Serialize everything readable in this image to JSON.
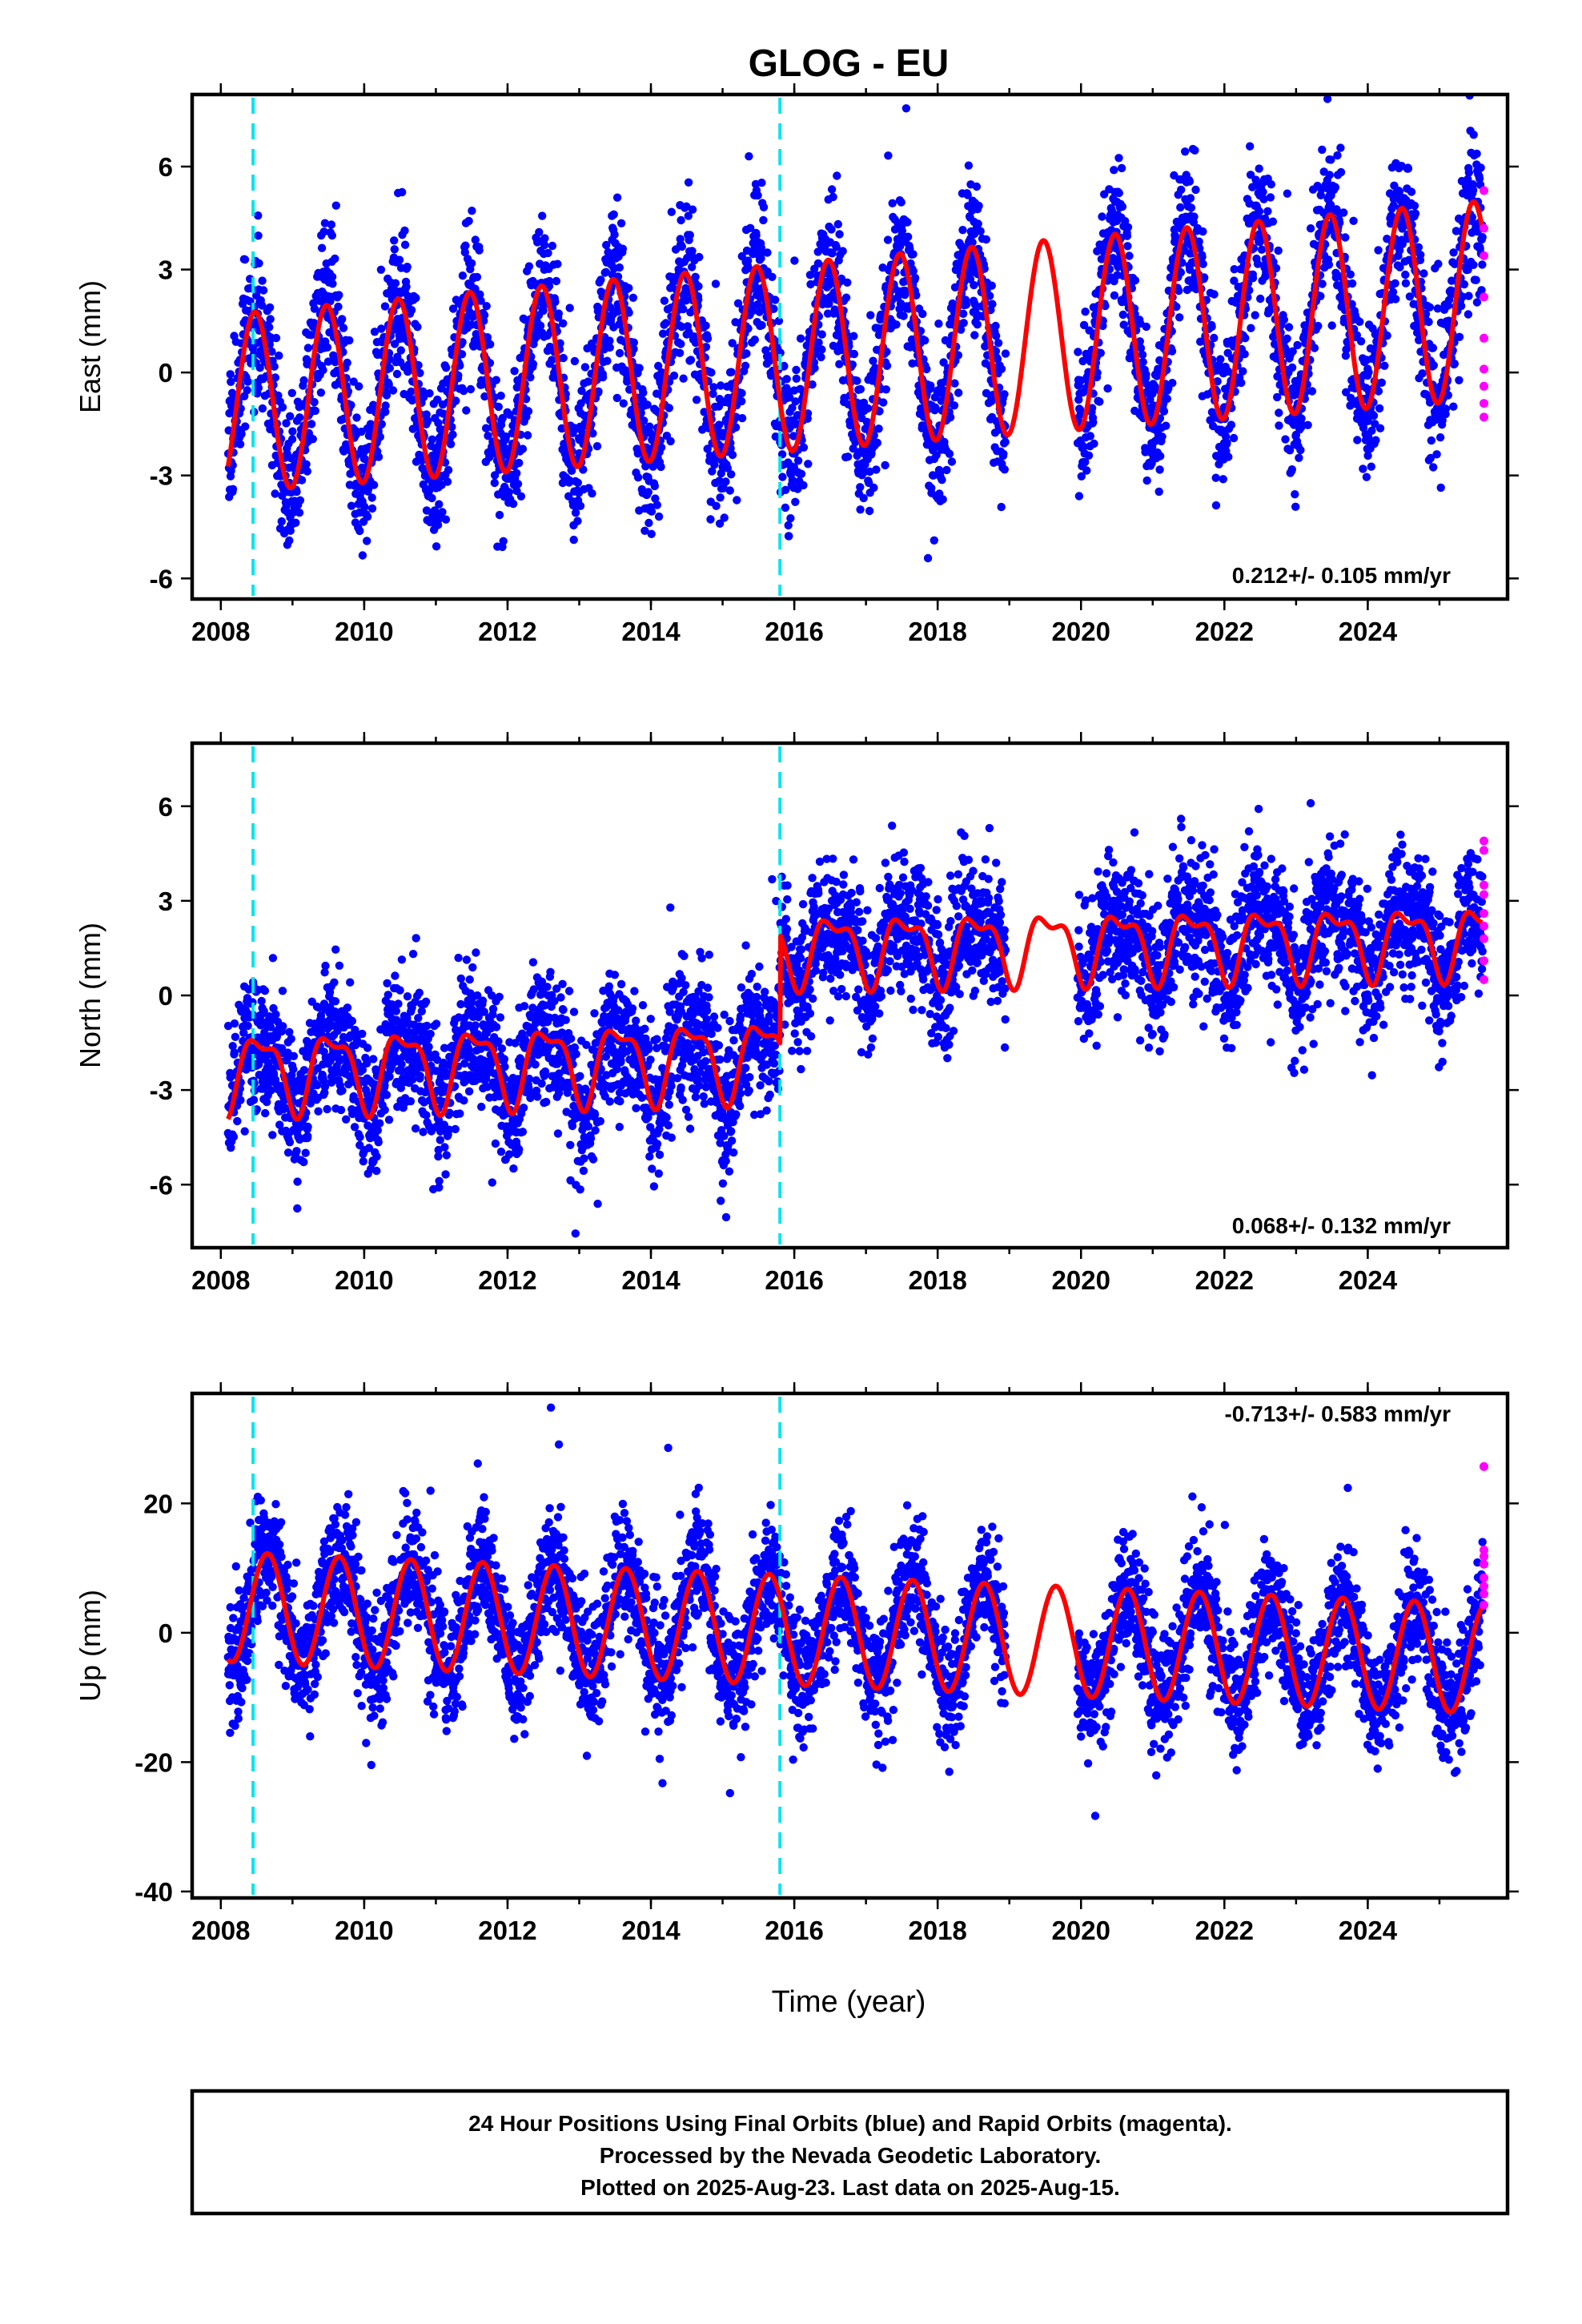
{
  "title": "GLOG - EU",
  "xlabel": "Time (year)",
  "footnote": [
    "24 Hour Positions Using Final Orbits (blue) and Rapid Orbits (magenta).",
    "Processed by the Nevada Geodetic Laboratory.",
    "Plotted on 2025-Aug-23. Last data on 2025-Aug-15."
  ],
  "colors": {
    "final_points": "#0000ff",
    "rapid_points": "#ff00ff",
    "model_line": "#ff0000",
    "event_lines": "#00e5ee"
  },
  "chart_data": [
    {
      "type": "scatter",
      "component": "east",
      "ylabel": "East (mm)",
      "xlim": [
        2007.6,
        2025.95
      ],
      "ylim": [
        -6.6,
        8.1
      ],
      "xticks": [
        "2008",
        "2010",
        "2012",
        "2014",
        "2016",
        "2018",
        "2020",
        "2022",
        "2024"
      ],
      "yticks": [
        "-6",
        "-3",
        "0",
        "3",
        "6"
      ],
      "rate_label": "0.212+/- 0.105 mm/yr",
      "rate_mm_per_yr": 0.212,
      "rate_sigma": 0.105,
      "event_lines_year": [
        2008.45,
        2015.8
      ],
      "grid": false,
      "data_start": 2008.1,
      "data_end": 2025.6,
      "gaps": [
        [
          2018.95,
          2019.95
        ]
      ],
      "seasonal": {
        "offset_2008": -0.9,
        "amp_2008": 2.6,
        "amp_2025": 2.9,
        "peak_phase": 0.45,
        "offset_2025": 2.1
      },
      "rapid_points_year": 2025.62,
      "rapid_points_values": [
        5.3,
        4.2,
        3.4,
        2.2,
        1.0,
        0.1,
        -0.4,
        -0.9,
        -1.3
      ]
    },
    {
      "type": "scatter",
      "component": "north",
      "ylabel": "North (mm)",
      "xlim": [
        2007.6,
        2025.95
      ],
      "ylim": [
        -8.0,
        8.0
      ],
      "xticks": [
        "2008",
        "2010",
        "2012",
        "2014",
        "2016",
        "2018",
        "2020",
        "2022",
        "2024"
      ],
      "yticks": [
        "-6",
        "-3",
        "0",
        "3",
        "6"
      ],
      "rate_label": "0.068+/- 0.132 mm/yr",
      "rate_mm_per_yr": 0.068,
      "rate_sigma": 0.132,
      "event_lines_year": [
        2008.45,
        2015.8
      ],
      "grid": false,
      "data_start": 2008.1,
      "data_end": 2025.6,
      "gaps": [
        [
          2018.95,
          2019.95
        ]
      ],
      "rapid_points_year": 2025.62,
      "rapid_points_values": [
        4.9,
        4.6,
        3.5,
        3.2,
        2.6,
        2.2,
        1.8,
        1.1,
        0.5
      ]
    },
    {
      "type": "scatter",
      "component": "up",
      "ylabel": "Up (mm)",
      "xlim": [
        2007.6,
        2025.95
      ],
      "ylim": [
        -41.0,
        37.0
      ],
      "xticks": [
        "2008",
        "2010",
        "2012",
        "2014",
        "2016",
        "2018",
        "2020",
        "2022",
        "2024"
      ],
      "yticks": [
        "-40",
        "-20",
        "0",
        "20"
      ],
      "rate_label": "-0.713+/- 0.583 mm/yr",
      "rate_mm_per_yr": -0.713,
      "rate_sigma": 0.583,
      "event_lines_year": [
        2008.45,
        2015.8
      ],
      "grid": false,
      "data_start": 2008.1,
      "data_end": 2025.6,
      "gaps": [
        [
          2018.95,
          2019.95
        ]
      ],
      "rapid_points_year": 2025.62,
      "rapid_points_values": [
        25.7,
        12.8,
        11.8,
        10.6,
        8.5,
        7.2,
        6.0,
        4.3
      ]
    }
  ]
}
